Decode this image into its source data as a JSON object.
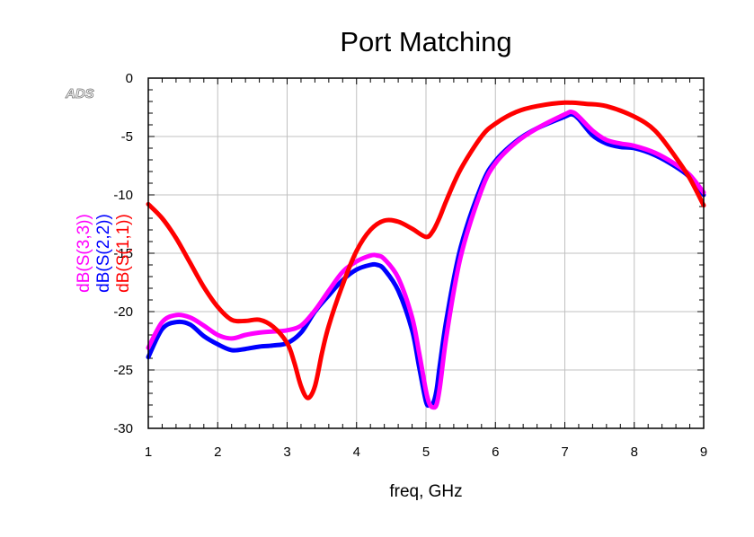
{
  "watermark": "ADS",
  "chart_data": {
    "type": "line",
    "title": "Port Matching",
    "xlabel": "freq, GHz",
    "ylabels": [
      {
        "text": "dB(S(3,3))",
        "color": "#ff00ff"
      },
      {
        "text": "dB(S(2,2))",
        "color": "#0000ff"
      },
      {
        "text": "dB(S(1,1))",
        "color": "#ff0000"
      }
    ],
    "xlim": [
      1,
      9
    ],
    "ylim": [
      -30,
      0
    ],
    "xticks": [
      1,
      2,
      3,
      4,
      5,
      6,
      7,
      8,
      9
    ],
    "yticks": [
      0,
      -5,
      -10,
      -15,
      -20,
      -25,
      -30
    ],
    "grid": true,
    "series": [
      {
        "name": "dB(S(2,2))",
        "color": "#0000ff",
        "x": [
          1,
          1.2,
          1.4,
          1.6,
          1.8,
          2.0,
          2.2,
          2.4,
          2.6,
          2.8,
          3.0,
          3.2,
          3.4,
          3.6,
          3.8,
          4.0,
          4.2,
          4.3,
          4.4,
          4.6,
          4.8,
          4.9,
          5.0,
          5.05,
          5.1,
          5.15,
          5.2,
          5.3,
          5.5,
          5.8,
          6.0,
          6.3,
          6.6,
          7.0,
          7.1,
          7.2,
          7.4,
          7.6,
          7.8,
          8.0,
          8.3,
          8.6,
          8.8,
          9.0
        ],
        "values": [
          -23.9,
          -21.5,
          -20.9,
          -21.1,
          -22.1,
          -22.8,
          -23.3,
          -23.2,
          -23.0,
          -22.9,
          -22.7,
          -21.8,
          -20.0,
          -18.6,
          -17.3,
          -16.4,
          -16.0,
          -16.0,
          -16.4,
          -18.2,
          -21.6,
          -24.7,
          -27.7,
          -28.0,
          -27.9,
          -26.8,
          -24.6,
          -20.5,
          -14.5,
          -9.2,
          -7.1,
          -5.4,
          -4.3,
          -3.3,
          -3.1,
          -3.5,
          -4.9,
          -5.6,
          -5.9,
          -6.0,
          -6.6,
          -7.6,
          -8.5,
          -10.0
        ]
      },
      {
        "name": "dB(S(3,3))",
        "color": "#ff00ff",
        "x": [
          1,
          1.2,
          1.4,
          1.6,
          1.8,
          2.0,
          2.2,
          2.4,
          2.6,
          2.8,
          3.0,
          3.2,
          3.4,
          3.6,
          3.8,
          4.0,
          4.2,
          4.3,
          4.4,
          4.6,
          4.8,
          4.9,
          5.0,
          5.05,
          5.1,
          5.15,
          5.2,
          5.3,
          5.5,
          5.8,
          6.0,
          6.3,
          6.6,
          7.0,
          7.1,
          7.2,
          7.4,
          7.6,
          7.8,
          8.0,
          8.3,
          8.6,
          8.8,
          9.0
        ],
        "values": [
          -23.1,
          -20.9,
          -20.3,
          -20.5,
          -21.2,
          -22.0,
          -22.3,
          -22.0,
          -21.8,
          -21.7,
          -21.6,
          -21.2,
          -19.9,
          -18.2,
          -16.6,
          -15.7,
          -15.2,
          -15.2,
          -15.5,
          -17.1,
          -20.5,
          -23.5,
          -26.8,
          -27.9,
          -28.2,
          -28.0,
          -26.5,
          -21.9,
          -15.3,
          -9.6,
          -7.3,
          -5.5,
          -4.3,
          -3.1,
          -2.9,
          -3.3,
          -4.5,
          -5.3,
          -5.6,
          -5.8,
          -6.4,
          -7.4,
          -8.3,
          -9.8
        ]
      },
      {
        "name": "dB(S(1,1))",
        "color": "#ff0000",
        "x": [
          1,
          1.2,
          1.4,
          1.6,
          1.8,
          2.0,
          2.2,
          2.4,
          2.6,
          2.8,
          3.0,
          3.1,
          3.2,
          3.3,
          3.4,
          3.5,
          3.6,
          3.8,
          4.0,
          4.2,
          4.4,
          4.6,
          4.8,
          5.0,
          5.1,
          5.2,
          5.3,
          5.5,
          5.8,
          6.0,
          6.3,
          6.6,
          7.0,
          7.3,
          7.6,
          8.0,
          8.3,
          8.6,
          8.8,
          9.0
        ],
        "values": [
          -10.8,
          -12.0,
          -13.7,
          -15.8,
          -17.9,
          -19.6,
          -20.7,
          -20.8,
          -20.7,
          -21.3,
          -22.7,
          -24.3,
          -26.4,
          -27.4,
          -26.4,
          -23.6,
          -21.2,
          -17.7,
          -14.8,
          -13.0,
          -12.2,
          -12.3,
          -12.9,
          -13.6,
          -13.1,
          -11.9,
          -10.4,
          -7.8,
          -5.0,
          -3.9,
          -2.9,
          -2.4,
          -2.1,
          -2.2,
          -2.4,
          -3.3,
          -4.5,
          -6.8,
          -8.6,
          -10.9
        ]
      }
    ]
  }
}
